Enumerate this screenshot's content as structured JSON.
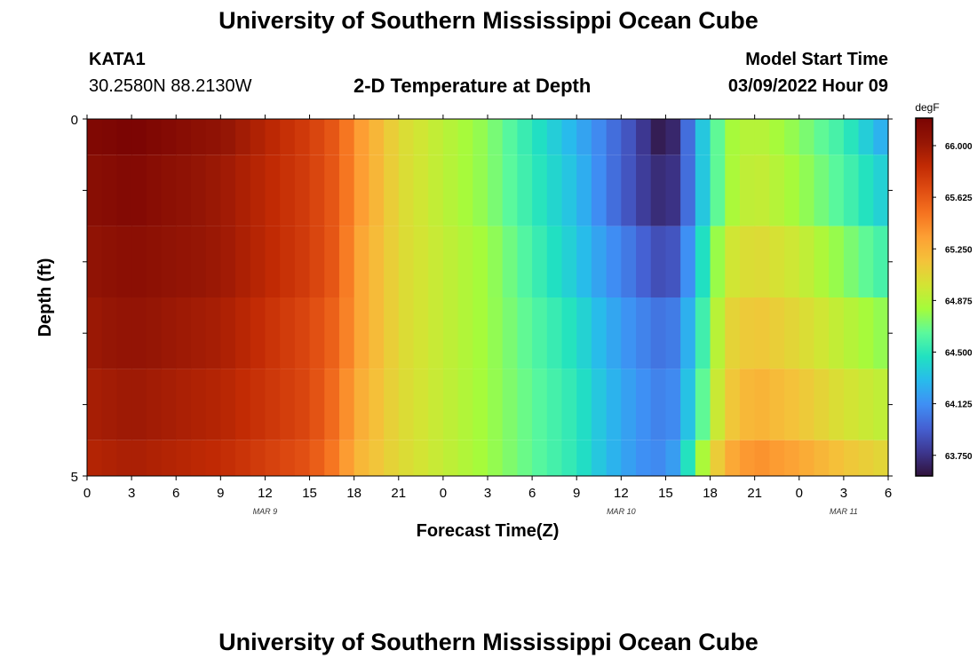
{
  "header": {
    "title": "University of Southern Mississippi Ocean Cube",
    "station": "KATA1",
    "coords": "30.2580N  88.2130W",
    "subtitle": "2-D Temperature at Depth",
    "model_start_label": "Model Start Time",
    "model_start_value": "03/09/2022 Hour 09"
  },
  "footer": {
    "title": "University of Southern Mississippi Ocean Cube"
  },
  "chart_data": {
    "type": "heatmap",
    "xlabel": "Forecast Time(Z)",
    "ylabel": "Depth (ft)",
    "x_tick_labels": [
      "0",
      "3",
      "6",
      "9",
      "12",
      "15",
      "18",
      "21",
      "0",
      "3",
      "6",
      "9",
      "12",
      "15",
      "18",
      "21",
      "0",
      "3",
      "6"
    ],
    "x_date_labels": [
      {
        "text": "MAR 9",
        "tick_index": 4
      },
      {
        "text": "MAR 10",
        "tick_index": 12
      },
      {
        "text": "MAR 11",
        "tick_index": 17
      }
    ],
    "y_tick_labels": [
      "0",
      "5"
    ],
    "ylim": [
      0,
      5
    ],
    "colorbar": {
      "unit": "degF",
      "labels": [
        "66.000",
        "65.625",
        "65.250",
        "64.875",
        "64.500",
        "64.125",
        "63.750"
      ],
      "range": [
        63.6,
        66.2
      ]
    },
    "depth_layers": [
      0,
      1,
      2,
      3,
      4,
      5
    ],
    "keyframes": {
      "hours": [
        0,
        3,
        9,
        15,
        17,
        18,
        21,
        27,
        33,
        35,
        37,
        38,
        39,
        40,
        41,
        43,
        45,
        48,
        51,
        54
      ],
      "rows": [
        [
          66.15,
          66.2,
          66.05,
          65.75,
          65.6,
          65.4,
          65.05,
          64.75,
          64.25,
          64.05,
          63.85,
          63.7,
          63.6,
          63.8,
          64.2,
          64.8,
          64.9,
          64.75,
          64.55,
          64.2
        ],
        [
          66.1,
          66.15,
          66.0,
          65.75,
          65.6,
          65.4,
          65.05,
          64.75,
          64.3,
          64.05,
          63.85,
          63.75,
          63.7,
          63.8,
          64.2,
          64.8,
          64.95,
          64.8,
          64.6,
          64.35
        ],
        [
          66.05,
          66.1,
          66.0,
          65.75,
          65.6,
          65.35,
          65.05,
          64.8,
          64.35,
          64.15,
          64.0,
          63.9,
          63.85,
          63.95,
          64.3,
          64.95,
          65.05,
          64.95,
          64.75,
          64.55
        ],
        [
          66.0,
          66.05,
          65.95,
          65.7,
          65.55,
          65.35,
          65.05,
          64.8,
          64.45,
          64.25,
          64.1,
          64.05,
          64.0,
          64.1,
          64.4,
          65.05,
          65.15,
          65.05,
          64.9,
          64.75
        ],
        [
          65.95,
          66.0,
          65.9,
          65.7,
          65.5,
          65.3,
          65.05,
          64.8,
          64.5,
          64.3,
          64.15,
          64.1,
          64.05,
          64.15,
          64.5,
          65.1,
          65.25,
          65.15,
          65.0,
          64.9
        ],
        [
          65.9,
          65.95,
          65.85,
          65.65,
          65.45,
          65.25,
          65.05,
          64.8,
          64.5,
          64.3,
          64.15,
          64.1,
          64.1,
          64.25,
          64.7,
          65.25,
          65.4,
          65.3,
          65.15,
          65.05
        ]
      ]
    },
    "colormap": [
      "#30123b",
      "#3d3790",
      "#4560d2",
      "#3f8ff4",
      "#28bbec",
      "#21e1c1",
      "#5bf99c",
      "#a4fc3b",
      "#d3e434",
      "#f4c33a",
      "#fda034",
      "#f67420",
      "#df4c12",
      "#c12a04",
      "#951605",
      "#7a0403"
    ]
  }
}
